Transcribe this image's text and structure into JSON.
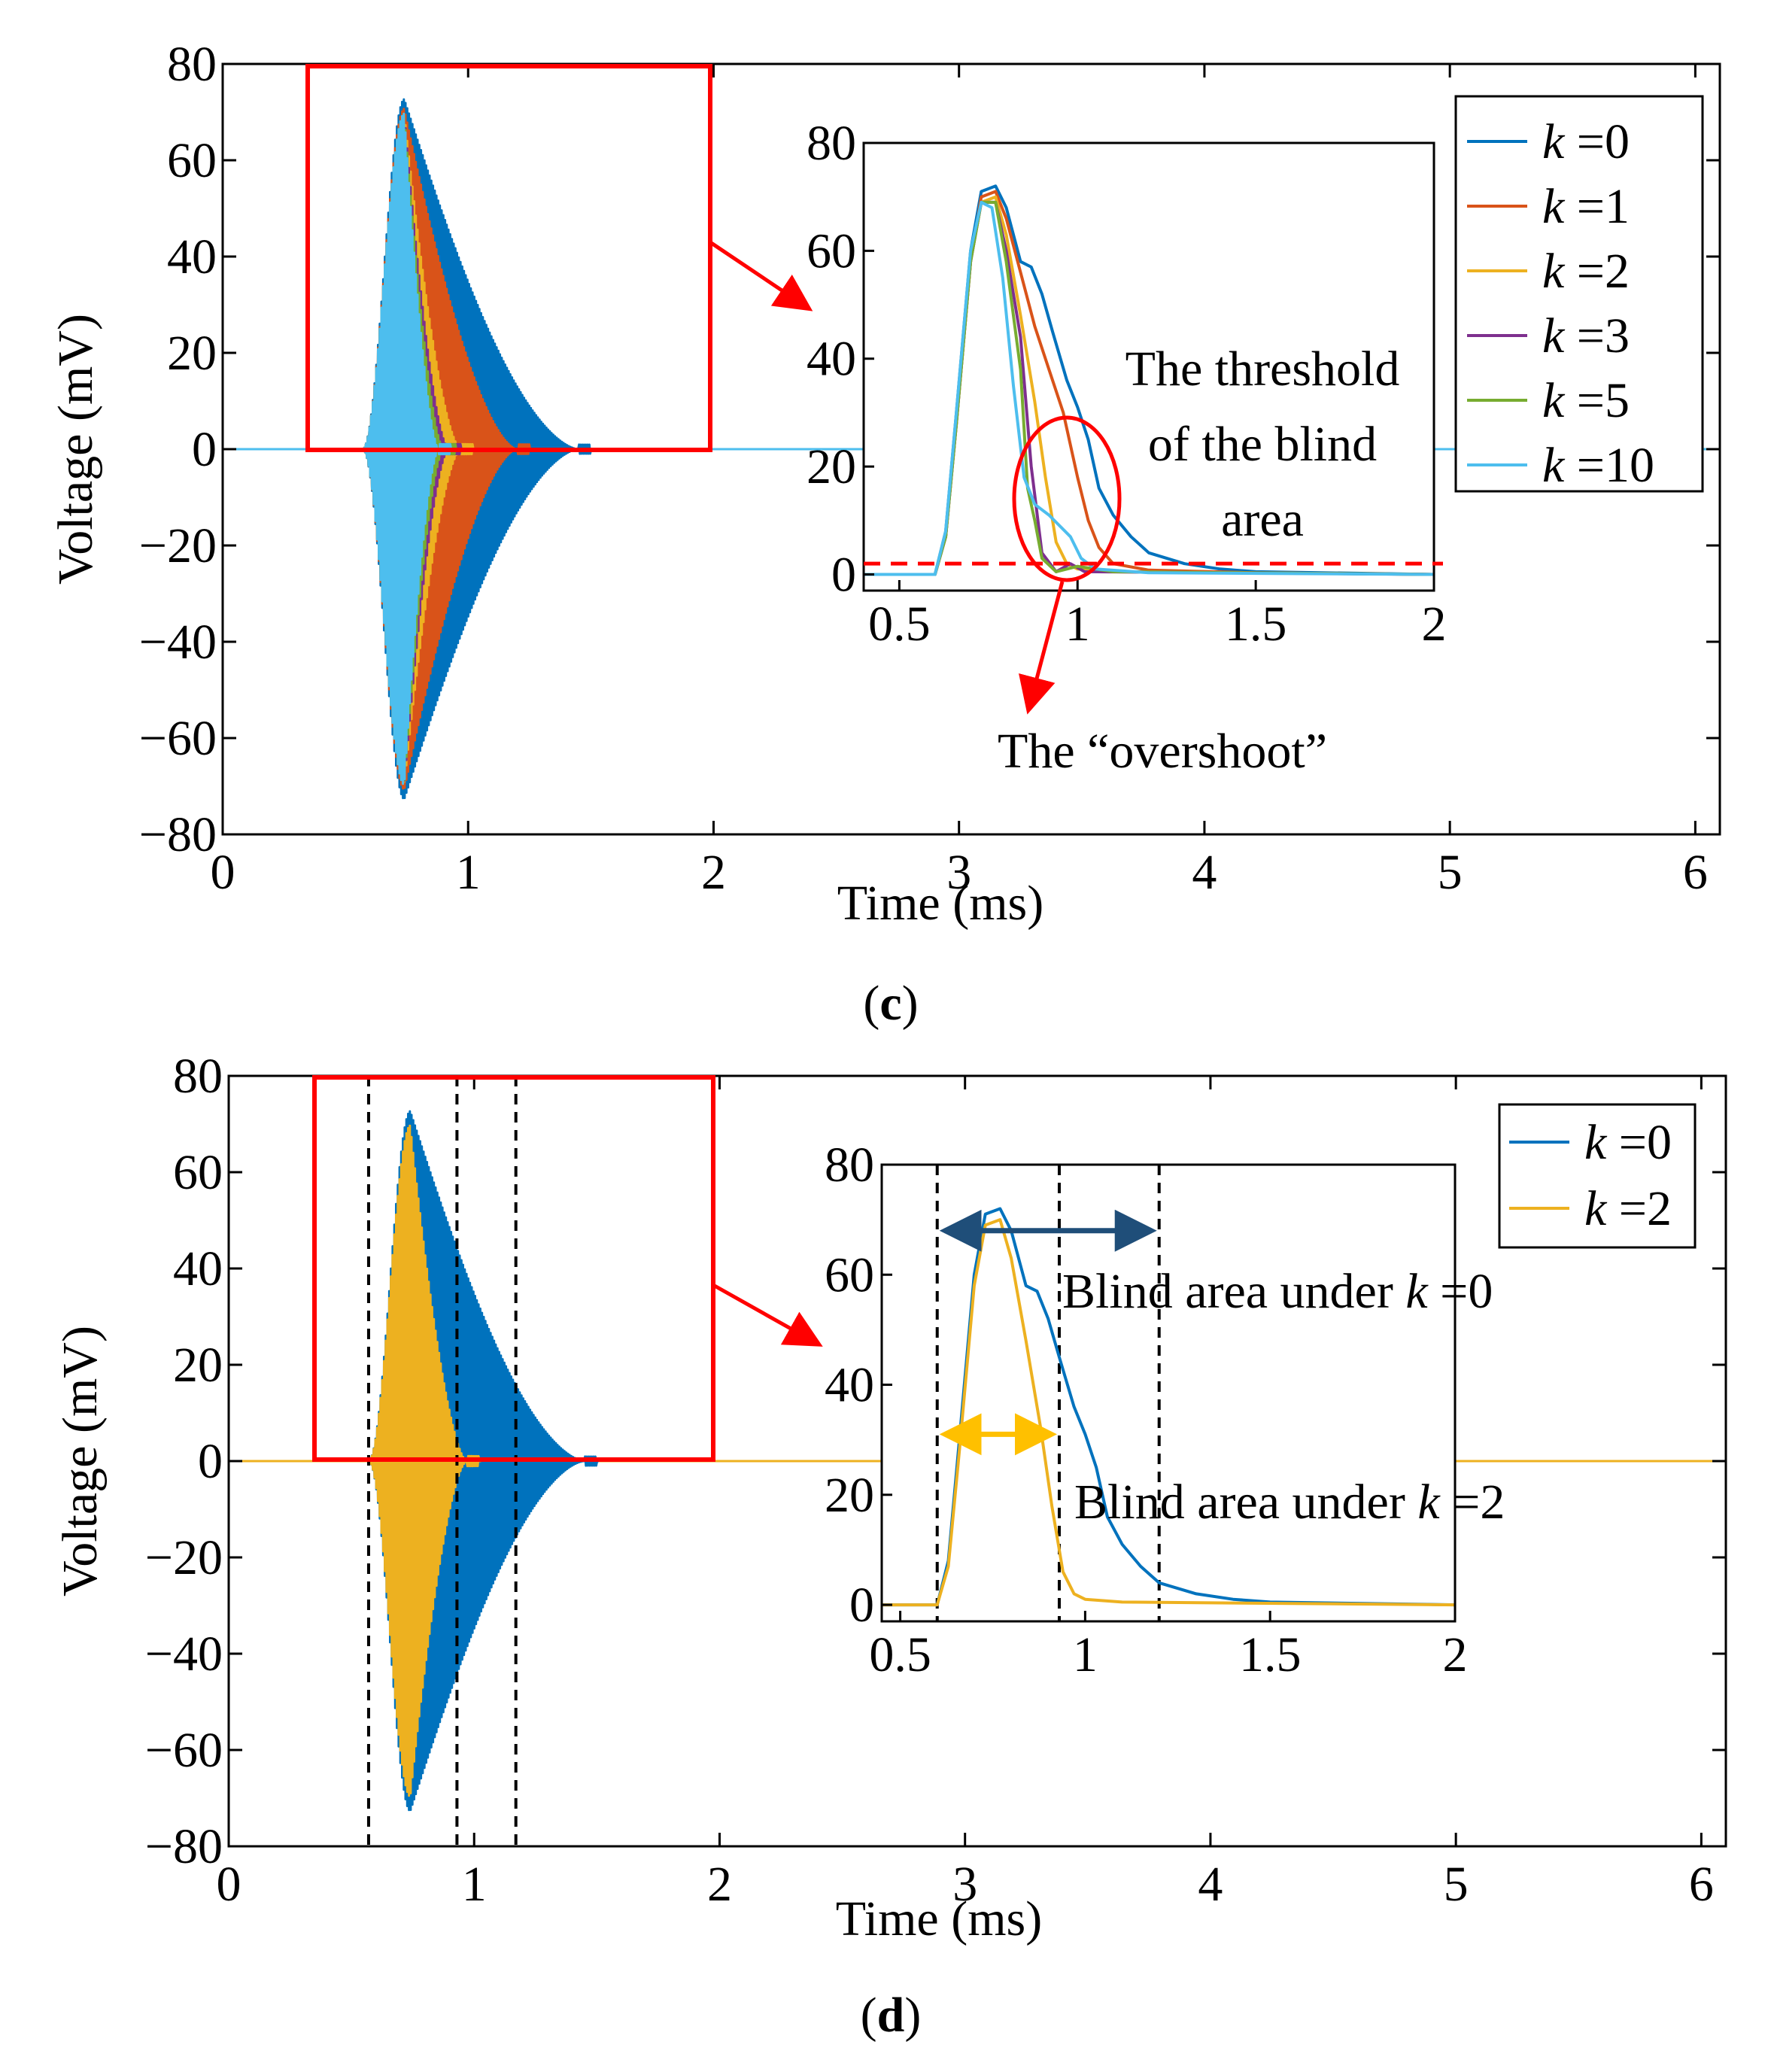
{
  "panels": {
    "c": {
      "label_open": "(",
      "label_letter": "c",
      "label_close": ")",
      "annotation_threshold": [
        "The threshold",
        "of the blind",
        "area"
      ],
      "annotation_overshoot": "The “overshoot”"
    },
    "d": {
      "label_open": "(",
      "label_letter": "d",
      "label_close": ")",
      "annotation_k0_prefix": "Blind area under ",
      "annotation_k0_k": "k",
      "annotation_k0_suffix": " =0",
      "annotation_k2_prefix": "Blind area under ",
      "annotation_k2_k": "k",
      "annotation_k2_suffix": " =2"
    }
  },
  "colors": {
    "k0": "#0072BD",
    "k1": "#D95319",
    "k2": "#EDB120",
    "k3": "#7E2F8E",
    "k5": "#77AC30",
    "k10": "#4DBEEE",
    "highlight": "#FF0000",
    "arrow_blue": "#1F4E79",
    "arrow_gold": "#FFC000"
  },
  "chart_data": [
    {
      "panel": "c",
      "type": "line",
      "title": "",
      "xlabel": "Time (ms)",
      "ylabel": "Voltage (mV)",
      "xlim": [
        0,
        6.1
      ],
      "ylim": [
        -80,
        80
      ],
      "xticks": [
        "0",
        "1",
        "2",
        "3",
        "4",
        "5",
        "6"
      ],
      "yticks": [
        "80",
        "60",
        "40",
        "20",
        "0",
        "−20",
        "−40",
        "−60",
        "−80"
      ],
      "legend": {
        "position": "top-right",
        "entries": [
          "k =0",
          "k =1",
          "k =2",
          "k =3",
          "k =5",
          "k =10"
        ]
      },
      "series": [
        {
          "name": "k =0",
          "color_key": "k0",
          "peak_time_ms": 0.74,
          "peak_mv": 73,
          "decay_end_ms": 1.45
        },
        {
          "name": "k =1",
          "color_key": "k1",
          "peak_time_ms": 0.74,
          "peak_mv": 71,
          "decay_end_ms": 1.2
        },
        {
          "name": "k =2",
          "color_key": "k2",
          "peak_time_ms": 0.74,
          "peak_mv": 70,
          "decay_end_ms": 0.97
        },
        {
          "name": "k =3",
          "color_key": "k3",
          "peak_time_ms": 0.74,
          "peak_mv": 70,
          "decay_end_ms": 0.92
        },
        {
          "name": "k =5",
          "color_key": "k5",
          "peak_time_ms": 0.74,
          "peak_mv": 70,
          "decay_end_ms": 0.9
        },
        {
          "name": "k =10",
          "color_key": "k10",
          "peak_time_ms": 0.74,
          "peak_mv": 70,
          "decay_end_ms": 0.88
        }
      ],
      "inset": {
        "xlim": [
          0.4,
          2
        ],
        "ylim": [
          -3,
          80
        ],
        "xticks": [
          "0.5",
          "1",
          "1.5",
          "2"
        ],
        "yticks": [
          "80",
          "60",
          "40",
          "20",
          "0"
        ],
        "threshold_mv": 2,
        "envelopes": [
          {
            "name": "k =0",
            "color_key": "k0",
            "points": [
              [
                0.4,
                0
              ],
              [
                0.6,
                0
              ],
              [
                0.63,
                8
              ],
              [
                0.66,
                30
              ],
              [
                0.7,
                60
              ],
              [
                0.73,
                71
              ],
              [
                0.77,
                72
              ],
              [
                0.8,
                68
              ],
              [
                0.84,
                58
              ],
              [
                0.87,
                57
              ],
              [
                0.9,
                52
              ],
              [
                0.93,
                45
              ],
              [
                0.97,
                36
              ],
              [
                1.0,
                31
              ],
              [
                1.03,
                25
              ],
              [
                1.06,
                16
              ],
              [
                1.1,
                11
              ],
              [
                1.15,
                7
              ],
              [
                1.2,
                4
              ],
              [
                1.3,
                2
              ],
              [
                1.4,
                1
              ],
              [
                1.5,
                0.5
              ],
              [
                2.0,
                0
              ]
            ]
          },
          {
            "name": "k =1",
            "color_key": "k1",
            "points": [
              [
                0.4,
                0
              ],
              [
                0.6,
                0
              ],
              [
                0.63,
                7
              ],
              [
                0.66,
                28
              ],
              [
                0.7,
                58
              ],
              [
                0.73,
                70
              ],
              [
                0.77,
                71
              ],
              [
                0.8,
                66
              ],
              [
                0.84,
                56
              ],
              [
                0.88,
                46
              ],
              [
                0.92,
                38
              ],
              [
                0.96,
                30
              ],
              [
                1.0,
                18
              ],
              [
                1.03,
                10
              ],
              [
                1.06,
                5
              ],
              [
                1.1,
                2
              ],
              [
                1.2,
                0.8
              ],
              [
                1.5,
                0.3
              ],
              [
                2.0,
                0
              ]
            ]
          },
          {
            "name": "k =2",
            "color_key": "k2",
            "points": [
              [
                0.4,
                0
              ],
              [
                0.6,
                0
              ],
              [
                0.63,
                7
              ],
              [
                0.66,
                28
              ],
              [
                0.7,
                58
              ],
              [
                0.73,
                69
              ],
              [
                0.77,
                70
              ],
              [
                0.8,
                63
              ],
              [
                0.84,
                48
              ],
              [
                0.88,
                32
              ],
              [
                0.91,
                18
              ],
              [
                0.94,
                6
              ],
              [
                0.97,
                2
              ],
              [
                1.0,
                1
              ],
              [
                1.1,
                0.5
              ],
              [
                2.0,
                0
              ]
            ]
          },
          {
            "name": "k =3",
            "color_key": "k3",
            "points": [
              [
                0.4,
                0
              ],
              [
                0.6,
                0
              ],
              [
                0.63,
                7
              ],
              [
                0.66,
                28
              ],
              [
                0.7,
                58
              ],
              [
                0.73,
                69
              ],
              [
                0.77,
                69
              ],
              [
                0.8,
                60
              ],
              [
                0.84,
                44
              ],
              [
                0.87,
                20
              ],
              [
                0.9,
                4
              ],
              [
                0.94,
                0.5
              ],
              [
                0.98,
                2
              ],
              [
                1.02,
                0.5
              ],
              [
                2.0,
                0
              ]
            ]
          },
          {
            "name": "k =5",
            "color_key": "k5",
            "points": [
              [
                0.4,
                0
              ],
              [
                0.6,
                0
              ],
              [
                0.63,
                7
              ],
              [
                0.66,
                28
              ],
              [
                0.7,
                58
              ],
              [
                0.73,
                69
              ],
              [
                0.77,
                69
              ],
              [
                0.8,
                58
              ],
              [
                0.84,
                38
              ],
              [
                0.86,
                16
              ],
              [
                0.88,
                10
              ],
              [
                0.9,
                3
              ],
              [
                0.94,
                0.5
              ],
              [
                1.0,
                1.5
              ],
              [
                1.1,
                0.5
              ],
              [
                2.0,
                0
              ]
            ]
          },
          {
            "name": "k =10",
            "color_key": "k10",
            "points": [
              [
                0.4,
                0
              ],
              [
                0.6,
                0
              ],
              [
                0.63,
                8
              ],
              [
                0.66,
                30
              ],
              [
                0.7,
                60
              ],
              [
                0.73,
                69
              ],
              [
                0.76,
                68
              ],
              [
                0.79,
                55
              ],
              [
                0.82,
                35
              ],
              [
                0.85,
                18
              ],
              [
                0.88,
                13
              ],
              [
                0.92,
                11
              ],
              [
                0.95,
                9
              ],
              [
                0.98,
                7
              ],
              [
                1.01,
                3
              ],
              [
                1.05,
                1
              ],
              [
                1.2,
                0.3
              ],
              [
                2.0,
                0
              ]
            ]
          }
        ]
      }
    },
    {
      "panel": "d",
      "type": "line",
      "title": "",
      "xlabel": "Time (ms)",
      "ylabel": "Voltage (mV)",
      "xlim": [
        0,
        6.1
      ],
      "ylim": [
        -80,
        80
      ],
      "xticks": [
        "0",
        "1",
        "2",
        "3",
        "4",
        "5",
        "6"
      ],
      "yticks": [
        "80",
        "60",
        "40",
        "20",
        "0",
        "−20",
        "−40",
        "−60",
        "−80"
      ],
      "legend": {
        "position": "top-right",
        "entries": [
          "k =0",
          "k =2"
        ]
      },
      "dashed_vlines_ms": [
        0.57,
        0.93,
        1.17
      ],
      "series": [
        {
          "name": "k =0",
          "color_key": "k0",
          "peak_time_ms": 0.74,
          "peak_mv": 73,
          "decay_end_ms": 1.45
        },
        {
          "name": "k =2",
          "color_key": "k2",
          "peak_time_ms": 0.74,
          "peak_mv": 70,
          "decay_end_ms": 0.97
        }
      ],
      "inset": {
        "xlim": [
          0.45,
          2
        ],
        "ylim": [
          -3,
          80
        ],
        "xticks": [
          "0.5",
          "1",
          "1.5",
          "2"
        ],
        "yticks": [
          "80",
          "60",
          "40",
          "20",
          "0"
        ],
        "dashed_vlines_ms": [
          0.6,
          0.93,
          1.2
        ],
        "blind_area_k0_ms": [
          0.6,
          1.2
        ],
        "blind_area_k2_ms": [
          0.6,
          0.93
        ],
        "envelopes": [
          {
            "name": "k =0",
            "color_key": "k0",
            "points": [
              [
                0.45,
                0
              ],
              [
                0.6,
                0
              ],
              [
                0.63,
                8
              ],
              [
                0.66,
                30
              ],
              [
                0.7,
                60
              ],
              [
                0.73,
                71
              ],
              [
                0.77,
                72
              ],
              [
                0.8,
                68
              ],
              [
                0.84,
                58
              ],
              [
                0.87,
                57
              ],
              [
                0.9,
                52
              ],
              [
                0.93,
                45
              ],
              [
                0.97,
                36
              ],
              [
                1.0,
                31
              ],
              [
                1.03,
                25
              ],
              [
                1.06,
                16
              ],
              [
                1.1,
                11
              ],
              [
                1.15,
                7
              ],
              [
                1.2,
                4
              ],
              [
                1.3,
                2
              ],
              [
                1.4,
                1
              ],
              [
                1.5,
                0.5
              ],
              [
                2.0,
                0
              ]
            ]
          },
          {
            "name": "k =2",
            "color_key": "k2",
            "points": [
              [
                0.45,
                0
              ],
              [
                0.6,
                0
              ],
              [
                0.63,
                7
              ],
              [
                0.66,
                28
              ],
              [
                0.7,
                58
              ],
              [
                0.73,
                69
              ],
              [
                0.77,
                70
              ],
              [
                0.8,
                63
              ],
              [
                0.84,
                48
              ],
              [
                0.88,
                32
              ],
              [
                0.91,
                18
              ],
              [
                0.94,
                6
              ],
              [
                0.97,
                2
              ],
              [
                1.0,
                1
              ],
              [
                1.1,
                0.5
              ],
              [
                2.0,
                0
              ]
            ]
          }
        ]
      }
    }
  ]
}
